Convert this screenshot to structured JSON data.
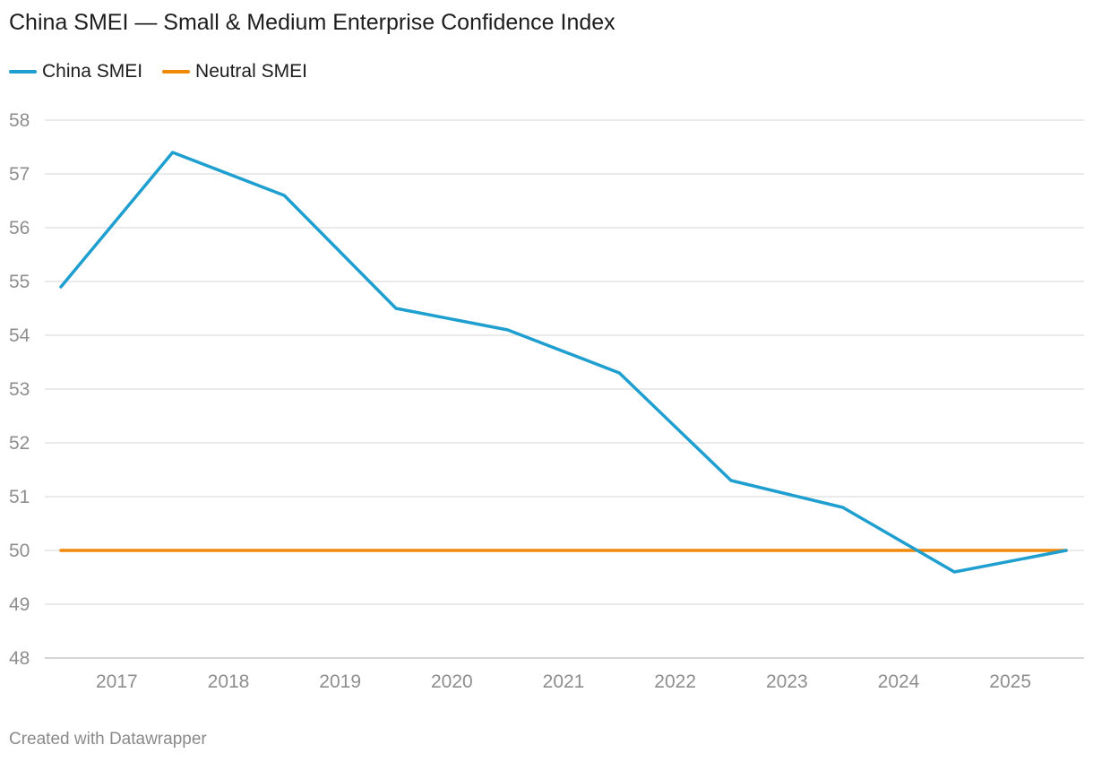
{
  "title": "China SMEI — Small & Medium Enterprise Confidence Index",
  "legend": [
    {
      "label": "China SMEI",
      "color": "#1f9fcf"
    },
    {
      "label": "Neutral SMEI",
      "color": "#f0880a"
    }
  ],
  "footer": "Created with Datawrapper",
  "chart_data": {
    "type": "line",
    "title": "China SMEI — Small & Medium Enterprise Confidence Index",
    "xlabel": "",
    "ylabel": "",
    "x": [
      2016.5,
      2017.5,
      2018.5,
      2019.5,
      2020.5,
      2021.5,
      2022.5,
      2023.5,
      2024.5,
      2025.5
    ],
    "x_ticks": [
      "2017",
      "2018",
      "2019",
      "2020",
      "2021",
      "2022",
      "2023",
      "2024",
      "2025"
    ],
    "x_tick_values": [
      2017,
      2018,
      2019,
      2020,
      2021,
      2022,
      2023,
      2024,
      2025
    ],
    "xlim": [
      2016.5,
      2025.5
    ],
    "ylim": [
      48,
      58
    ],
    "y_ticks": [
      "48",
      "49",
      "50",
      "51",
      "52",
      "53",
      "54",
      "55",
      "56",
      "57",
      "58"
    ],
    "grid": true,
    "legend_position": "top-left",
    "series": [
      {
        "name": "China SMEI",
        "color": "#1f9fcf",
        "values": [
          54.9,
          57.4,
          56.6,
          54.5,
          54.1,
          53.3,
          51.3,
          50.8,
          49.6,
          50.0
        ]
      },
      {
        "name": "Neutral SMEI",
        "color": "#f0880a",
        "values": [
          50,
          50,
          50,
          50,
          50,
          50,
          50,
          50,
          50,
          50
        ]
      }
    ]
  }
}
